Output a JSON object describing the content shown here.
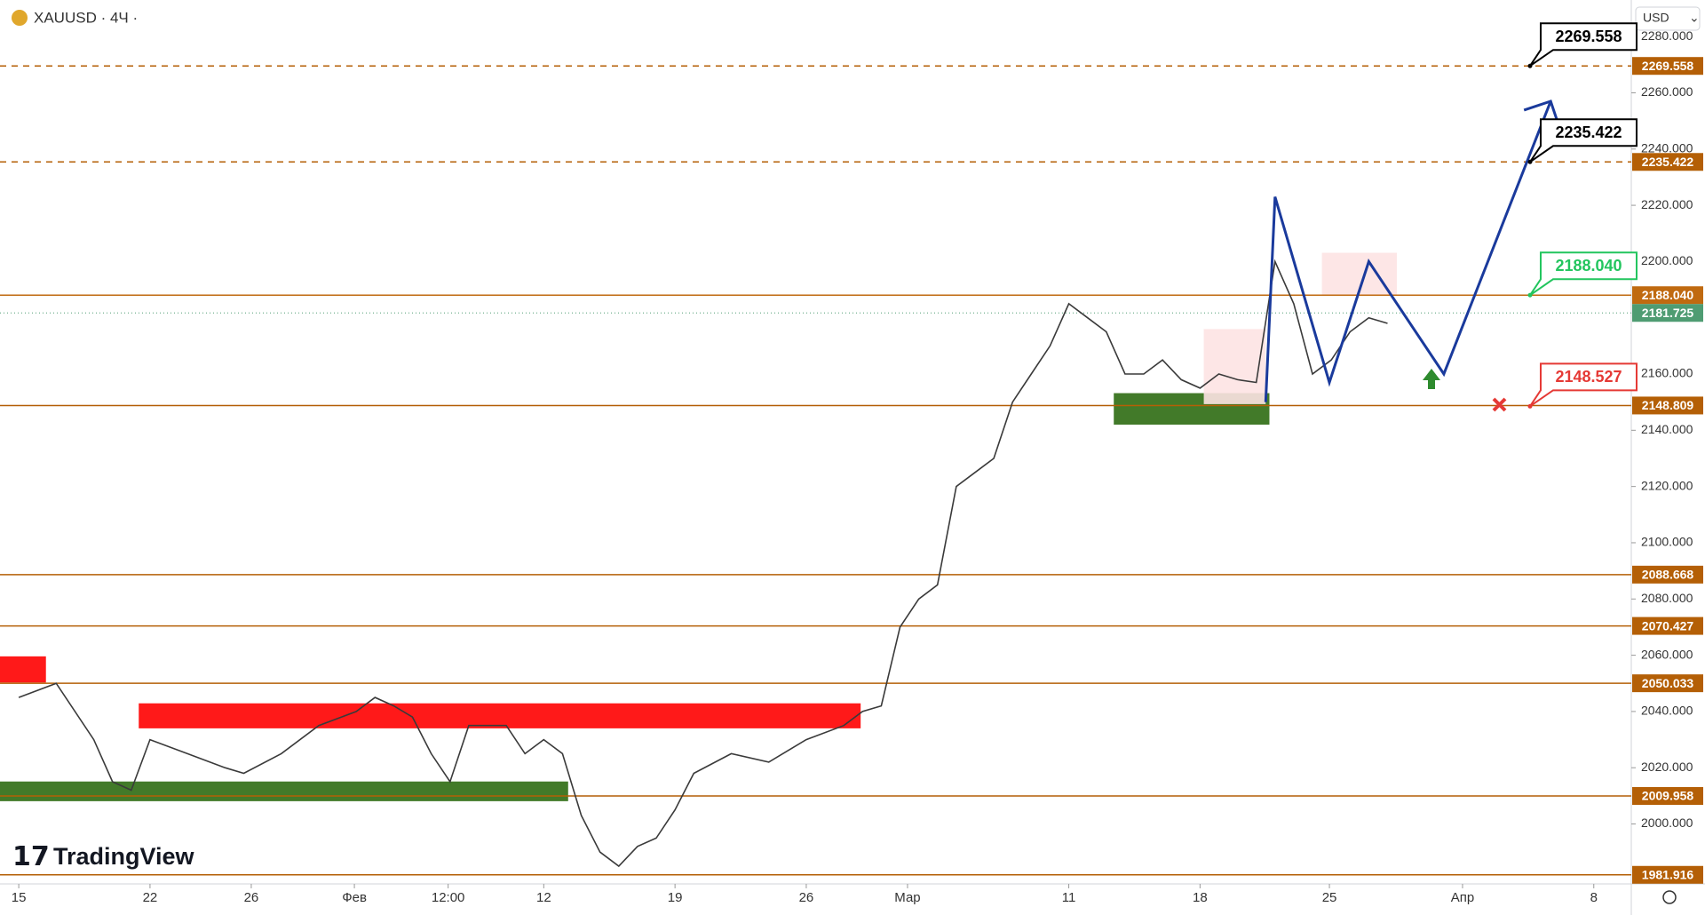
{
  "header": {
    "symbol": "XAUUSD · 4Ч ·",
    "currency": "USD",
    "brand": "TradingView"
  },
  "chart_data": {
    "type": "line",
    "color": "#3a3a3a",
    "x": [
      0,
      2,
      4,
      5,
      6,
      7,
      9,
      11,
      12,
      14,
      16,
      18,
      19,
      20,
      21,
      22,
      23,
      24,
      26,
      27,
      28,
      29,
      30,
      31,
      32,
      33,
      34,
      35,
      36,
      38,
      40,
      42,
      44,
      45,
      46,
      47,
      48,
      49,
      50,
      51,
      52,
      53,
      54,
      55,
      56,
      57,
      58,
      59,
      60,
      61,
      62,
      63,
      64,
      65,
      66,
      67,
      68,
      69,
      70,
      71,
      72,
      73
    ],
    "values": [
      2045,
      2050,
      2030,
      2015,
      2012,
      2030,
      2025,
      2020,
      2018,
      2025,
      2035,
      2040,
      2045,
      2042,
      2038,
      2025,
      2015,
      2035,
      2035,
      2025,
      2030,
      2025,
      2003,
      1990,
      1985,
      1992,
      1995,
      2005,
      2018,
      2025,
      2022,
      2030,
      2035,
      2040,
      2042,
      2070,
      2080,
      2085,
      2120,
      2125,
      2130,
      2150,
      2160,
      2170,
      2185,
      2180,
      2175,
      2160,
      2160,
      2165,
      2158,
      2155,
      2160,
      2158,
      2157,
      2200,
      2185,
      2160,
      2165,
      2175,
      2180,
      2178
    ],
    "xlim": [
      -1,
      86
    ],
    "xticks": [
      {
        "value": 0,
        "label": "15"
      },
      {
        "value": 7,
        "label": "22"
      },
      {
        "value": 12.4,
        "label": "26"
      },
      {
        "value": 17.9,
        "label": "Фев"
      },
      {
        "value": 22.9,
        "label": "12:00"
      },
      {
        "value": 28,
        "label": "12"
      },
      {
        "value": 35,
        "label": "19"
      },
      {
        "value": 42,
        "label": "26"
      },
      {
        "value": 47.4,
        "label": "Мар"
      },
      {
        "value": 56,
        "label": "11"
      },
      {
        "value": 63,
        "label": "18"
      },
      {
        "value": 69.9,
        "label": "25"
      },
      {
        "value": 77,
        "label": "Апр"
      },
      {
        "value": 84,
        "label": "8"
      }
    ],
    "ylim": [
      1979,
      2293
    ],
    "yticks": [
      {
        "value": 2000,
        "label": "2000.000"
      },
      {
        "value": 2020,
        "label": "2020.000"
      },
      {
        "value": 2040,
        "label": "2040.000"
      },
      {
        "value": 2060,
        "label": "2060.000"
      },
      {
        "value": 2080,
        "label": "2080.000"
      },
      {
        "value": 2100,
        "label": "2100.000"
      },
      {
        "value": 2120,
        "label": "2120.000"
      },
      {
        "value": 2140,
        "label": "2140.000"
      },
      {
        "value": 2160,
        "label": "2160.000"
      },
      {
        "value": 2200,
        "label": "2200.000"
      },
      {
        "value": 2220,
        "label": "2220.000"
      },
      {
        "value": 2240,
        "label": "2240.000"
      },
      {
        "value": 2260,
        "label": "2260.000"
      },
      {
        "value": 2280,
        "label": "2280.000"
      }
    ],
    "levels": [
      {
        "value": 2269.558,
        "dashed": true,
        "color": "#b45f06"
      },
      {
        "value": 2235.422,
        "dashed": true,
        "color": "#b45f06"
      },
      {
        "value": 2188.04,
        "label": "2188.040",
        "color": "#c06a10"
      },
      {
        "value": 2148.809,
        "color": "#b45f06"
      },
      {
        "value": 2088.668,
        "color": "#b45f06"
      },
      {
        "value": 2070.427,
        "color": "#b45f06"
      },
      {
        "value": 2050.033,
        "color": "#b45f06"
      },
      {
        "value": 2009.958,
        "color": "#b45f06"
      },
      {
        "value": 1981.916,
        "color": "#b45f06"
      }
    ],
    "last_price": {
      "value": 2181.725,
      "color": "#4f9c72"
    },
    "callouts": [
      {
        "value": 2269.558,
        "x": 80.6,
        "color": "#000000"
      },
      {
        "value": 2235.422,
        "x": 80.6,
        "color": "#000000"
      },
      {
        "value": 2188.04,
        "label": "2188.040",
        "x": 80.6,
        "color": "#22c55e"
      },
      {
        "value": 2148.527,
        "x": 80.6,
        "color": "#e53935"
      }
    ],
    "projection": {
      "color": "#1a3a9c",
      "x": [
        66.5,
        67,
        69.9,
        72,
        76,
        81.7
      ],
      "values": [
        2150,
        2223,
        2157,
        2200,
        2160,
        2257
      ]
    },
    "zones": [
      {
        "x": [
          -1,
          1.45
        ],
        "y": [
          2050.3,
          2059.6
        ],
        "color": "#ff0000"
      },
      {
        "x": [
          6.4,
          44.9
        ],
        "y": [
          2034,
          2042.9
        ],
        "color": "#ff0000"
      },
      {
        "x": [
          -1,
          29.3
        ],
        "y": [
          2008.1,
          2015.1
        ],
        "color": "#2e6b12"
      },
      {
        "x": [
          58.4,
          66.7
        ],
        "y": [
          2142,
          2153.2
        ],
        "color": "#2e6b12"
      },
      {
        "x": [
          63.2,
          66.5
        ],
        "y": [
          2149.3,
          2176
        ],
        "color": "#fde3e3"
      },
      {
        "x": [
          69.5,
          73.5
        ],
        "y": [
          2188,
          2203.1
        ],
        "color": "#fde3e3"
      }
    ]
  }
}
